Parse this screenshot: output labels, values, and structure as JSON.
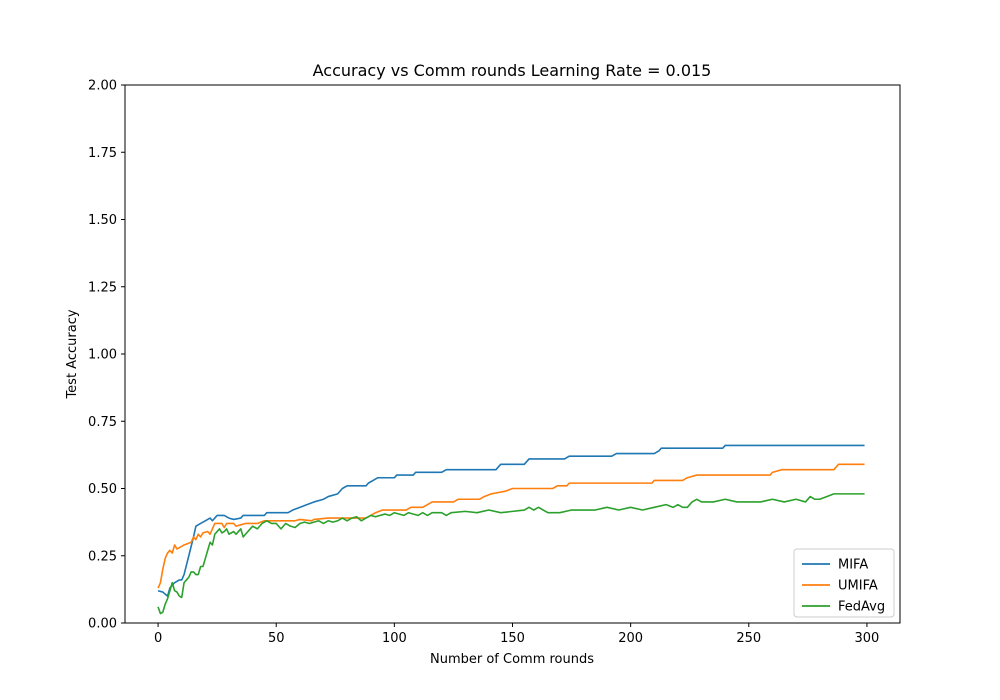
{
  "chart_data": {
    "type": "line",
    "title": "Accuracy vs Comm rounds Learning Rate = 0.015",
    "xlabel": "Number of Comm rounds",
    "ylabel": "Test Accuracy",
    "xlim": [
      -14,
      314
    ],
    "ylim": [
      0,
      2.0
    ],
    "xticks": [
      0,
      50,
      100,
      150,
      200,
      250,
      300
    ],
    "xtick_labels": [
      "0",
      "50",
      "100",
      "150",
      "200",
      "250",
      "300"
    ],
    "yticks": [
      0,
      0.25,
      0.5,
      0.75,
      1.0,
      1.25,
      1.5,
      1.75,
      2.0
    ],
    "ytick_labels": [
      "0.00",
      "0.25",
      "0.50",
      "0.75",
      "1.00",
      "1.25",
      "1.50",
      "1.75",
      "2.00"
    ],
    "grid": false,
    "legend_position": "lower-right",
    "series": [
      {
        "name": "MIFA",
        "color": "#1f77b4",
        "points": [
          [
            0,
            0.12
          ],
          [
            2,
            0.115
          ],
          [
            4,
            0.1
          ],
          [
            5,
            0.13
          ],
          [
            7,
            0.15
          ],
          [
            9,
            0.16
          ],
          [
            10,
            0.16
          ],
          [
            11,
            0.18
          ],
          [
            13,
            0.25
          ],
          [
            15,
            0.32
          ],
          [
            16,
            0.36
          ],
          [
            18,
            0.37
          ],
          [
            20,
            0.38
          ],
          [
            22,
            0.39
          ],
          [
            23,
            0.38
          ],
          [
            24,
            0.39
          ],
          [
            25,
            0.4
          ],
          [
            28,
            0.4
          ],
          [
            30,
            0.39
          ],
          [
            32,
            0.385
          ],
          [
            35,
            0.39
          ],
          [
            36,
            0.4
          ],
          [
            45,
            0.4
          ],
          [
            46,
            0.41
          ],
          [
            55,
            0.41
          ],
          [
            57,
            0.42
          ],
          [
            60,
            0.43
          ],
          [
            63,
            0.44
          ],
          [
            66,
            0.45
          ],
          [
            70,
            0.46
          ],
          [
            72,
            0.47
          ],
          [
            76,
            0.48
          ],
          [
            78,
            0.5
          ],
          [
            80,
            0.51
          ],
          [
            88,
            0.51
          ],
          [
            89,
            0.52
          ],
          [
            91,
            0.53
          ],
          [
            93,
            0.54
          ],
          [
            100,
            0.54
          ],
          [
            101,
            0.55
          ],
          [
            108,
            0.55
          ],
          [
            109,
            0.56
          ],
          [
            120,
            0.56
          ],
          [
            122,
            0.57
          ],
          [
            143,
            0.57
          ],
          [
            145,
            0.59
          ],
          [
            155,
            0.59
          ],
          [
            157,
            0.61
          ],
          [
            172,
            0.61
          ],
          [
            174,
            0.62
          ],
          [
            192,
            0.62
          ],
          [
            194,
            0.63
          ],
          [
            210,
            0.63
          ],
          [
            212,
            0.64
          ],
          [
            213,
            0.65
          ],
          [
            239,
            0.65
          ],
          [
            240,
            0.66
          ],
          [
            299,
            0.66
          ]
        ]
      },
      {
        "name": "UMIFA",
        "color": "#ff7f0e",
        "points": [
          [
            0,
            0.13
          ],
          [
            1,
            0.15
          ],
          [
            2,
            0.2
          ],
          [
            3,
            0.24
          ],
          [
            4,
            0.26
          ],
          [
            5,
            0.27
          ],
          [
            6,
            0.26
          ],
          [
            7,
            0.29
          ],
          [
            8,
            0.275
          ],
          [
            9,
            0.28
          ],
          [
            11,
            0.29
          ],
          [
            14,
            0.3
          ],
          [
            15,
            0.32
          ],
          [
            16,
            0.31
          ],
          [
            17,
            0.33
          ],
          [
            18,
            0.32
          ],
          [
            19,
            0.335
          ],
          [
            21,
            0.34
          ],
          [
            22,
            0.33
          ],
          [
            23,
            0.35
          ],
          [
            24,
            0.37
          ],
          [
            27,
            0.37
          ],
          [
            28,
            0.355
          ],
          [
            29,
            0.37
          ],
          [
            32,
            0.37
          ],
          [
            33,
            0.36
          ],
          [
            35,
            0.365
          ],
          [
            37,
            0.37
          ],
          [
            42,
            0.37
          ],
          [
            45,
            0.38
          ],
          [
            58,
            0.38
          ],
          [
            60,
            0.385
          ],
          [
            65,
            0.38
          ],
          [
            66,
            0.385
          ],
          [
            72,
            0.39
          ],
          [
            88,
            0.39
          ],
          [
            90,
            0.4
          ],
          [
            92,
            0.41
          ],
          [
            95,
            0.42
          ],
          [
            105,
            0.42
          ],
          [
            107,
            0.43
          ],
          [
            112,
            0.43
          ],
          [
            114,
            0.44
          ],
          [
            116,
            0.45
          ],
          [
            125,
            0.45
          ],
          [
            127,
            0.46
          ],
          [
            136,
            0.46
          ],
          [
            138,
            0.47
          ],
          [
            141,
            0.48
          ],
          [
            147,
            0.49
          ],
          [
            150,
            0.5
          ],
          [
            167,
            0.5
          ],
          [
            169,
            0.51
          ],
          [
            173,
            0.51
          ],
          [
            174,
            0.52
          ],
          [
            209,
            0.52
          ],
          [
            210,
            0.53
          ],
          [
            222,
            0.53
          ],
          [
            224,
            0.54
          ],
          [
            228,
            0.55
          ],
          [
            259,
            0.55
          ],
          [
            260,
            0.56
          ],
          [
            264,
            0.57
          ],
          [
            286,
            0.57
          ],
          [
            288,
            0.59
          ],
          [
            299,
            0.59
          ]
        ]
      },
      {
        "name": "FedAvg",
        "color": "#2ca02c",
        "points": [
          [
            0,
            0.06
          ],
          [
            1,
            0.035
          ],
          [
            2,
            0.04
          ],
          [
            3,
            0.07
          ],
          [
            4,
            0.09
          ],
          [
            5,
            0.12
          ],
          [
            6,
            0.15
          ],
          [
            7,
            0.12
          ],
          [
            8,
            0.115
          ],
          [
            9,
            0.1
          ],
          [
            10,
            0.095
          ],
          [
            11,
            0.15
          ],
          [
            12,
            0.16
          ],
          [
            13,
            0.17
          ],
          [
            14,
            0.19
          ],
          [
            15,
            0.19
          ],
          [
            16,
            0.18
          ],
          [
            17,
            0.18
          ],
          [
            18,
            0.21
          ],
          [
            19,
            0.21
          ],
          [
            20,
            0.24
          ],
          [
            21,
            0.27
          ],
          [
            22,
            0.3
          ],
          [
            23,
            0.29
          ],
          [
            24,
            0.33
          ],
          [
            25,
            0.34
          ],
          [
            26,
            0.35
          ],
          [
            27,
            0.335
          ],
          [
            28,
            0.34
          ],
          [
            29,
            0.35
          ],
          [
            30,
            0.33
          ],
          [
            31,
            0.335
          ],
          [
            32,
            0.34
          ],
          [
            33,
            0.33
          ],
          [
            34,
            0.34
          ],
          [
            35,
            0.35
          ],
          [
            36,
            0.32
          ],
          [
            37,
            0.33
          ],
          [
            38,
            0.34
          ],
          [
            40,
            0.36
          ],
          [
            42,
            0.35
          ],
          [
            44,
            0.37
          ],
          [
            46,
            0.38
          ],
          [
            48,
            0.37
          ],
          [
            50,
            0.37
          ],
          [
            52,
            0.35
          ],
          [
            54,
            0.37
          ],
          [
            56,
            0.36
          ],
          [
            58,
            0.355
          ],
          [
            60,
            0.37
          ],
          [
            62,
            0.375
          ],
          [
            64,
            0.37
          ],
          [
            66,
            0.375
          ],
          [
            68,
            0.38
          ],
          [
            70,
            0.37
          ],
          [
            72,
            0.38
          ],
          [
            74,
            0.375
          ],
          [
            76,
            0.38
          ],
          [
            78,
            0.39
          ],
          [
            80,
            0.38
          ],
          [
            82,
            0.39
          ],
          [
            84,
            0.395
          ],
          [
            86,
            0.38
          ],
          [
            88,
            0.39
          ],
          [
            90,
            0.4
          ],
          [
            92,
            0.395
          ],
          [
            94,
            0.4
          ],
          [
            96,
            0.405
          ],
          [
            98,
            0.4
          ],
          [
            100,
            0.41
          ],
          [
            104,
            0.4
          ],
          [
            106,
            0.41
          ],
          [
            110,
            0.4
          ],
          [
            112,
            0.41
          ],
          [
            114,
            0.4
          ],
          [
            116,
            0.41
          ],
          [
            120,
            0.41
          ],
          [
            122,
            0.4
          ],
          [
            124,
            0.41
          ],
          [
            130,
            0.415
          ],
          [
            135,
            0.41
          ],
          [
            140,
            0.42
          ],
          [
            145,
            0.41
          ],
          [
            155,
            0.42
          ],
          [
            157,
            0.43
          ],
          [
            159,
            0.42
          ],
          [
            161,
            0.43
          ],
          [
            163,
            0.42
          ],
          [
            165,
            0.41
          ],
          [
            170,
            0.41
          ],
          [
            175,
            0.42
          ],
          [
            185,
            0.42
          ],
          [
            190,
            0.43
          ],
          [
            195,
            0.42
          ],
          [
            200,
            0.43
          ],
          [
            205,
            0.42
          ],
          [
            210,
            0.43
          ],
          [
            215,
            0.44
          ],
          [
            218,
            0.43
          ],
          [
            220,
            0.44
          ],
          [
            222,
            0.43
          ],
          [
            224,
            0.43
          ],
          [
            226,
            0.45
          ],
          [
            228,
            0.46
          ],
          [
            230,
            0.45
          ],
          [
            235,
            0.45
          ],
          [
            240,
            0.46
          ],
          [
            245,
            0.45
          ],
          [
            255,
            0.45
          ],
          [
            260,
            0.46
          ],
          [
            265,
            0.45
          ],
          [
            270,
            0.46
          ],
          [
            274,
            0.45
          ],
          [
            276,
            0.47
          ],
          [
            278,
            0.46
          ],
          [
            280,
            0.46
          ],
          [
            283,
            0.47
          ],
          [
            286,
            0.48
          ],
          [
            290,
            0.48
          ],
          [
            295,
            0.48
          ],
          [
            299,
            0.48
          ]
        ]
      }
    ]
  }
}
